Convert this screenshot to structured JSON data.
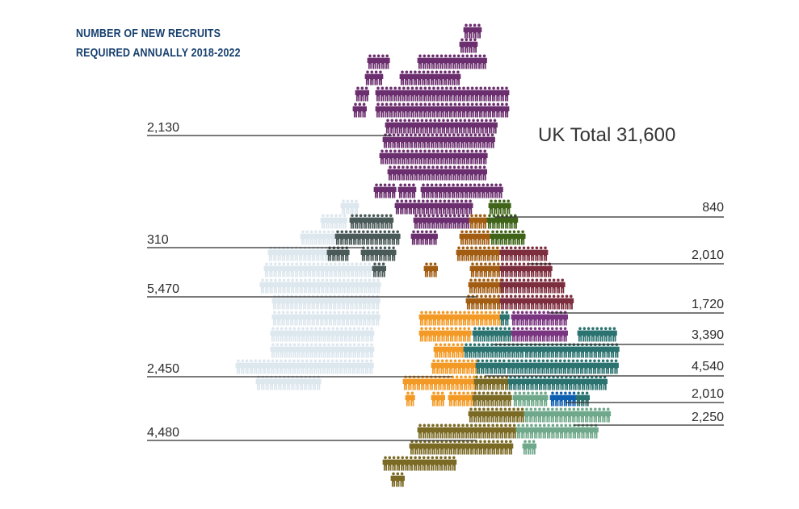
{
  "title_lines": [
    "NUMBER OF NEW RECRUITS",
    "REQUIRED ANNUALLY 2018-2022"
  ],
  "total_label": "UK Total 31,600",
  "chart_data": {
    "type": "pictogram-map",
    "title": "NUMBER OF NEW RECRUITS REQUIRED ANNUALLY 2018-2022",
    "total": 31600,
    "regions": [
      {
        "label": "2,130",
        "value": 2130,
        "color": "#6b2e6e"
      },
      {
        "label": "310",
        "value": 310,
        "color": "#4a5a58"
      },
      {
        "label": "5,470",
        "value": 5470,
        "color": "#dde7ee"
      },
      {
        "label": "2,450",
        "value": 2450,
        "color": "#f39a26"
      },
      {
        "label": "4,480",
        "value": 4480,
        "color": "#7a6a24"
      },
      {
        "label": "840",
        "value": 840,
        "color": "#3f6419"
      },
      {
        "label": "2,010",
        "value": 2010,
        "color": "#a25d13"
      },
      {
        "label": "1,720",
        "value": 1720,
        "color": "#7d2e3e"
      },
      {
        "label": "3,390",
        "value": 3390,
        "color": "#7a3580"
      },
      {
        "label": "4,540",
        "value": 4540,
        "color": "#2b7370"
      },
      {
        "label": "2,010",
        "value": 2010,
        "color": "#0f5fb0"
      },
      {
        "label": "2,250",
        "value": 2250,
        "color": "#6fa88a"
      }
    ]
  }
}
